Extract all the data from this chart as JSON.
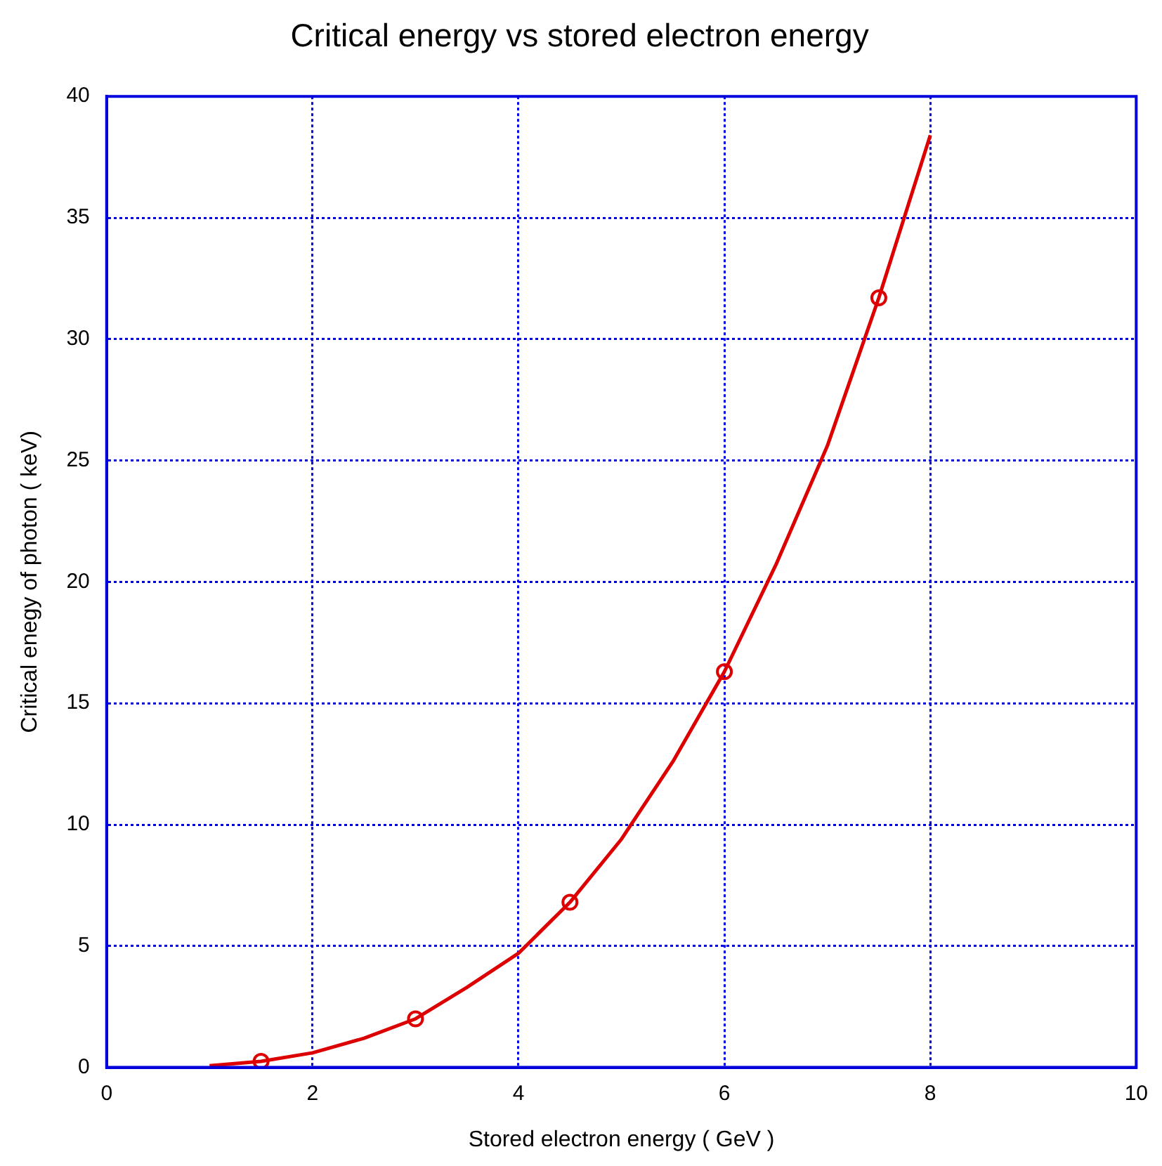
{
  "chart_data": {
    "type": "line",
    "title": "Critical energy vs stored electron energy",
    "xlabel": "Stored electron energy ( GeV )",
    "ylabel": "Critical enegy of photon ( keV)",
    "xlim": [
      0,
      10
    ],
    "xticks": [
      0,
      2,
      4,
      6,
      8,
      10
    ],
    "ylim": [
      0,
      40
    ],
    "yticks": [
      0,
      5,
      10,
      15,
      20,
      25,
      30,
      35,
      40
    ],
    "grid": true,
    "legend": false,
    "series": [
      {
        "marker": "none",
        "color": "#dd0000",
        "x": [
          1,
          1.5,
          2,
          2.5,
          3,
          3.5,
          4,
          4.5,
          5,
          5.5,
          6,
          6.5,
          7,
          7.5,
          8
        ],
        "values": [
          0.07,
          0.25,
          0.6,
          1.2,
          2,
          3.3,
          4.7,
          6.8,
          9.4,
          12.6,
          16.3,
          20.7,
          25.6,
          31.7,
          38.4
        ]
      },
      {
        "type": "scatter",
        "marker": "circle",
        "color": "#dd0000",
        "x": [
          1.5,
          3,
          4.5,
          6,
          7.5
        ],
        "values": [
          0.25,
          2,
          6.8,
          16.3,
          31.7
        ]
      }
    ]
  }
}
